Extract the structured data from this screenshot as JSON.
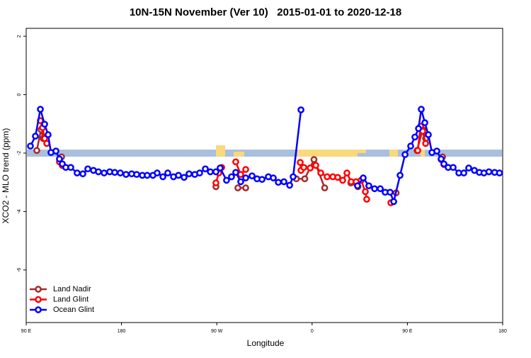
{
  "chart_data": {
    "type": "line",
    "title": "10N-15N November (Ver 10)   2015-01-01 to 2020-12-18",
    "x_label": "Longitude",
    "y_label": "XCO2 - MLO trend (ppm)",
    "xlim": [
      90,
      540
    ],
    "ylim": [
      -7.8,
      2.27
    ],
    "xticks": [
      {
        "value": 90,
        "label": "90 E"
      },
      180,
      {
        "value": 270,
        "label": "90 W"
      },
      {
        "value": 360,
        "label": "0"
      },
      {
        "value": 450,
        "label": "90 E"
      },
      {
        "value": 540,
        "label": "180"
      }
    ],
    "yticks": [
      2,
      0,
      -2,
      -4,
      -6
    ],
    "legend": "bottom-left",
    "series": [
      {
        "name": "Land Nadir",
        "color": "#a52a2a",
        "x": [
          100.0,
          104.0,
          106.0,
          null,
          123.4,
          null,
          269.2,
          null,
          289.9,
          297.3,
          null,
          345.1,
          353.1,
          361.8,
          371.9,
          null,
          396.6,
          403.3,
          null,
          439.4,
          null,
          459.1,
          464.5,
          467.2,
          null,
          483.2
        ],
        "values": [
          -1.91,
          -1.2,
          -1.5,
          null,
          -2.13,
          null,
          -3.15,
          null,
          -3.19,
          -3.19,
          null,
          -2.88,
          -2.88,
          -2.22,
          -3.19,
          null,
          -3.02,
          -3.15,
          null,
          -3.36,
          null,
          -1.91,
          -1.2,
          -1.5,
          null,
          -2.13
        ]
      },
      {
        "name": "Land Glint",
        "color": "#ff0000",
        "x": [
          103.4,
          105.4,
          107.4,
          109.4,
          null,
          121.4,
          124.1,
          null,
          269.2,
          271.9,
          274.6,
          null,
          287.9,
          292.6,
          297.3,
          null,
          348.8,
          349.5,
          352.2,
          358.2,
          363.5,
          368.2,
          374.2,
          379.6,
          384.2,
          388.9,
          392.9,
          396.9,
          401.6,
          406.3,
          410.3,
          411.6,
          null,
          434.4,
          null,
          459.8,
          462.5,
          464.5,
          467.2,
          null,
          481.9,
          484.5
        ],
        "values": [
          -0.89,
          -1.13,
          -1.5,
          -1.67,
          null,
          -2.3,
          -2.42,
          null,
          -3.02,
          -2.68,
          -2.49,
          null,
          -2.3,
          -2.73,
          -2.56,
          null,
          -2.32,
          -2.59,
          -2.49,
          -2.51,
          -2.42,
          -2.68,
          -2.81,
          -2.81,
          -2.83,
          -2.93,
          -2.68,
          -2.98,
          -2.98,
          -2.93,
          -3.32,
          -3.58,
          null,
          -3.7,
          null,
          -1.91,
          -1.08,
          -1.25,
          -1.67,
          null,
          -2.22,
          -2.39
        ]
      },
      {
        "name": "Ocean Glint",
        "color": "#0000ff",
        "x": [
          94.0,
          98.7,
          103.4,
          107.4,
          110.7,
          113.4,
          118.1,
          121.4,
          124.1,
          127.4,
          132.1,
          138.1,
          143.5,
          148.2,
          153.5,
          158.2,
          163.6,
          168.9,
          173.6,
          178.9,
          184.3,
          189.6,
          194.3,
          199.7,
          204.3,
          209.7,
          213.7,
          219.1,
          223.7,
          229.1,
          233.8,
          239.1,
          243.8,
          249.2,
          253.8,
          259.2,
          263.9,
          269.2,
          273.2,
          279.2,
          283.9,
          287.9,
          292.6,
          297.3,
          303.3,
          308.0,
          312.7,
          318.7,
          323.4,
          328.1,
          333.4,
          338.8,
          342.1,
          349.5,
          null,
          402.9,
          408.3,
          413.6,
          419.0,
          424.4,
          429.0,
          433.7,
          437.1,
          443.1,
          447.8,
          453.1,
          457.1,
          460.5,
          463.1,
          466.5,
          469.8,
          473.2,
          477.8,
          481.9,
          484.5,
          488.5,
          493.2,
          498.6,
          503.3,
          507.9,
          513.3,
          518.0,
          522.3,
          527.0,
          532.4,
          537.0
        ],
        "values": [
          -1.76,
          -1.42,
          -0.5,
          -1.01,
          -1.37,
          -1.98,
          -1.93,
          -2.2,
          -2.37,
          -2.49,
          -2.49,
          -2.68,
          -2.71,
          -2.54,
          -2.59,
          -2.64,
          -2.68,
          -2.64,
          -2.66,
          -2.68,
          -2.73,
          -2.71,
          -2.73,
          -2.76,
          -2.76,
          -2.76,
          -2.68,
          -2.81,
          -2.68,
          -2.81,
          -2.76,
          -2.83,
          -2.71,
          -2.73,
          -2.68,
          -2.54,
          -2.64,
          -2.64,
          -2.51,
          -2.93,
          -2.81,
          -2.66,
          -2.98,
          -2.85,
          -2.78,
          -2.88,
          -2.9,
          -2.81,
          -2.85,
          -3.0,
          -2.98,
          -3.1,
          -2.81,
          -0.52,
          null,
          -3.12,
          -2.85,
          -3.12,
          -3.22,
          -3.22,
          -3.34,
          -3.34,
          -3.66,
          -2.76,
          -2.05,
          -1.76,
          -1.45,
          -1.16,
          -0.5,
          -0.96,
          -1.37,
          -1.98,
          -1.93,
          -2.2,
          -2.37,
          -2.49,
          -2.49,
          -2.68,
          -2.68,
          -2.51,
          -2.59,
          -2.66,
          -2.68,
          -2.64,
          -2.66,
          -2.68
        ]
      }
    ]
  }
}
